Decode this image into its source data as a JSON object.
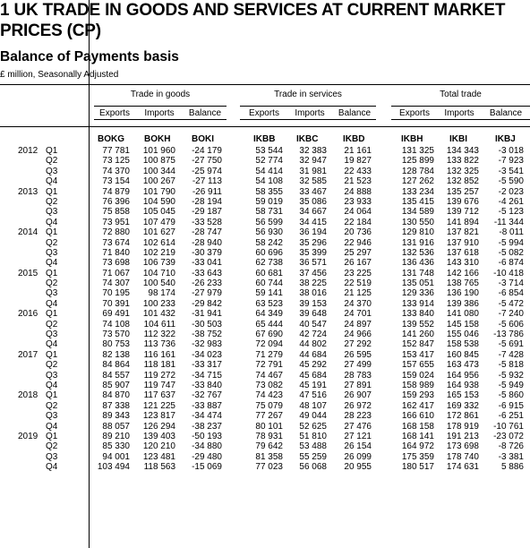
{
  "title": "1 UK TRADE IN GOODS AND SERVICES AT CURRENT MARKET PRICES (CP)",
  "subtitle": "Balance of Payments basis",
  "units": "£ million, Seasonally Adjusted",
  "groups": [
    "Trade in goods",
    "Trade in services",
    "Total trade"
  ],
  "subheaders": [
    "Exports",
    "Imports",
    "Balance",
    "Exports",
    "Imports",
    "Balance",
    "Exports",
    "Imports",
    "Balance"
  ],
  "codes": [
    "BOKG",
    "BOKH",
    "BOKI",
    "IKBB",
    "IKBC",
    "IKBD",
    "IKBH",
    "IKBI",
    "IKBJ"
  ],
  "rows": [
    {
      "year": "2012",
      "q": "Q1",
      "v": [
        "77 781",
        "101 960",
        "-24 179",
        "53 544",
        "32 383",
        "21 161",
        "131 325",
        "134 343",
        "-3 018"
      ]
    },
    {
      "year": "",
      "q": "Q2",
      "v": [
        "73 125",
        "100 875",
        "-27 750",
        "52 774",
        "32 947",
        "19 827",
        "125 899",
        "133 822",
        "-7 923"
      ]
    },
    {
      "year": "",
      "q": "Q3",
      "v": [
        "74 370",
        "100 344",
        "-25 974",
        "54 414",
        "31 981",
        "22 433",
        "128 784",
        "132 325",
        "-3 541"
      ]
    },
    {
      "year": "",
      "q": "Q4",
      "v": [
        "73 154",
        "100 267",
        "-27 113",
        "54 108",
        "32 585",
        "21 523",
        "127 262",
        "132 852",
        "-5 590"
      ]
    },
    {
      "year": "2013",
      "q": "Q1",
      "v": [
        "74 879",
        "101 790",
        "-26 911",
        "58 355",
        "33 467",
        "24 888",
        "133 234",
        "135 257",
        "-2 023"
      ]
    },
    {
      "year": "",
      "q": "Q2",
      "v": [
        "76 396",
        "104 590",
        "-28 194",
        "59 019",
        "35 086",
        "23 933",
        "135 415",
        "139 676",
        "-4 261"
      ]
    },
    {
      "year": "",
      "q": "Q3",
      "v": [
        "75 858",
        "105 045",
        "-29 187",
        "58 731",
        "34 667",
        "24 064",
        "134 589",
        "139 712",
        "-5 123"
      ]
    },
    {
      "year": "",
      "q": "Q4",
      "v": [
        "73 951",
        "107 479",
        "-33 528",
        "56 599",
        "34 415",
        "22 184",
        "130 550",
        "141 894",
        "-11 344"
      ]
    },
    {
      "year": "2014",
      "q": "Q1",
      "v": [
        "72 880",
        "101 627",
        "-28 747",
        "56 930",
        "36 194",
        "20 736",
        "129 810",
        "137 821",
        "-8 011"
      ]
    },
    {
      "year": "",
      "q": "Q2",
      "v": [
        "73 674",
        "102 614",
        "-28 940",
        "58 242",
        "35 296",
        "22 946",
        "131 916",
        "137 910",
        "-5 994"
      ]
    },
    {
      "year": "",
      "q": "Q3",
      "v": [
        "71 840",
        "102 219",
        "-30 379",
        "60 696",
        "35 399",
        "25 297",
        "132 536",
        "137 618",
        "-5 082"
      ]
    },
    {
      "year": "",
      "q": "Q4",
      "v": [
        "73 698",
        "106 739",
        "-33 041",
        "62 738",
        "36 571",
        "26 167",
        "136 436",
        "143 310",
        "-6 874"
      ]
    },
    {
      "year": "2015",
      "q": "Q1",
      "v": [
        "71 067",
        "104 710",
        "-33 643",
        "60 681",
        "37 456",
        "23 225",
        "131 748",
        "142 166",
        "-10 418"
      ]
    },
    {
      "year": "",
      "q": "Q2",
      "v": [
        "74 307",
        "100 540",
        "-26 233",
        "60 744",
        "38 225",
        "22 519",
        "135 051",
        "138 765",
        "-3 714"
      ]
    },
    {
      "year": "",
      "q": "Q3",
      "v": [
        "70 195",
        "98 174",
        "-27 979",
        "59 141",
        "38 016",
        "21 125",
        "129 336",
        "136 190",
        "-6 854"
      ]
    },
    {
      "year": "",
      "q": "Q4",
      "v": [
        "70 391",
        "100 233",
        "-29 842",
        "63 523",
        "39 153",
        "24 370",
        "133 914",
        "139 386",
        "-5 472"
      ]
    },
    {
      "year": "2016",
      "q": "Q1",
      "v": [
        "69 491",
        "101 432",
        "-31 941",
        "64 349",
        "39 648",
        "24 701",
        "133 840",
        "141 080",
        "-7 240"
      ]
    },
    {
      "year": "",
      "q": "Q2",
      "v": [
        "74 108",
        "104 611",
        "-30 503",
        "65 444",
        "40 547",
        "24 897",
        "139 552",
        "145 158",
        "-5 606"
      ]
    },
    {
      "year": "",
      "q": "Q3",
      "v": [
        "73 570",
        "112 322",
        "-38 752",
        "67 690",
        "42 724",
        "24 966",
        "141 260",
        "155 046",
        "-13 786"
      ]
    },
    {
      "year": "",
      "q": "Q4",
      "v": [
        "80 753",
        "113 736",
        "-32 983",
        "72 094",
        "44 802",
        "27 292",
        "152 847",
        "158 538",
        "-5 691"
      ]
    },
    {
      "year": "2017",
      "q": "Q1",
      "v": [
        "82 138",
        "116 161",
        "-34 023",
        "71 279",
        "44 684",
        "26 595",
        "153 417",
        "160 845",
        "-7 428"
      ]
    },
    {
      "year": "",
      "q": "Q2",
      "v": [
        "84 864",
        "118 181",
        "-33 317",
        "72 791",
        "45 292",
        "27 499",
        "157 655",
        "163 473",
        "-5 818"
      ]
    },
    {
      "year": "",
      "q": "Q3",
      "v": [
        "84 557",
        "119 272",
        "-34 715",
        "74 467",
        "45 684",
        "28 783",
        "159 024",
        "164 956",
        "-5 932"
      ]
    },
    {
      "year": "",
      "q": "Q4",
      "v": [
        "85 907",
        "119 747",
        "-33 840",
        "73 082",
        "45 191",
        "27 891",
        "158 989",
        "164 938",
        "-5 949"
      ]
    },
    {
      "year": "2018",
      "q": "Q1",
      "v": [
        "84 870",
        "117 637",
        "-32 767",
        "74 423",
        "47 516",
        "26 907",
        "159 293",
        "165 153",
        "-5 860"
      ]
    },
    {
      "year": "",
      "q": "Q2",
      "v": [
        "87 338",
        "121 225",
        "-33 887",
        "75 079",
        "48 107",
        "26 972",
        "162 417",
        "169 332",
        "-6 915"
      ]
    },
    {
      "year": "",
      "q": "Q3",
      "v": [
        "89 343",
        "123 817",
        "-34 474",
        "77 267",
        "49 044",
        "28 223",
        "166 610",
        "172 861",
        "-6 251"
      ]
    },
    {
      "year": "",
      "q": "Q4",
      "v": [
        "88 057",
        "126 294",
        "-38 237",
        "80 101",
        "52 625",
        "27 476",
        "168 158",
        "178 919",
        "-10 761"
      ]
    },
    {
      "year": "2019",
      "q": "Q1",
      "v": [
        "89 210",
        "139 403",
        "-50 193",
        "78 931",
        "51 810",
        "27 121",
        "168 141",
        "191 213",
        "-23 072"
      ]
    },
    {
      "year": "",
      "q": "Q2",
      "v": [
        "85 330",
        "120 210",
        "-34 880",
        "79 642",
        "53 488",
        "26 154",
        "164 972",
        "173 698",
        "-8 726"
      ]
    },
    {
      "year": "",
      "q": "Q3",
      "v": [
        "94 001",
        "123 481",
        "-29 480",
        "81 358",
        "55 259",
        "26 099",
        "175 359",
        "178 740",
        "-3 381"
      ]
    },
    {
      "year": "",
      "q": "Q4",
      "v": [
        "103 494",
        "118 563",
        "-15 069",
        "77 023",
        "56 068",
        "20 955",
        "180 517",
        "174 631",
        "5 886"
      ]
    }
  ]
}
